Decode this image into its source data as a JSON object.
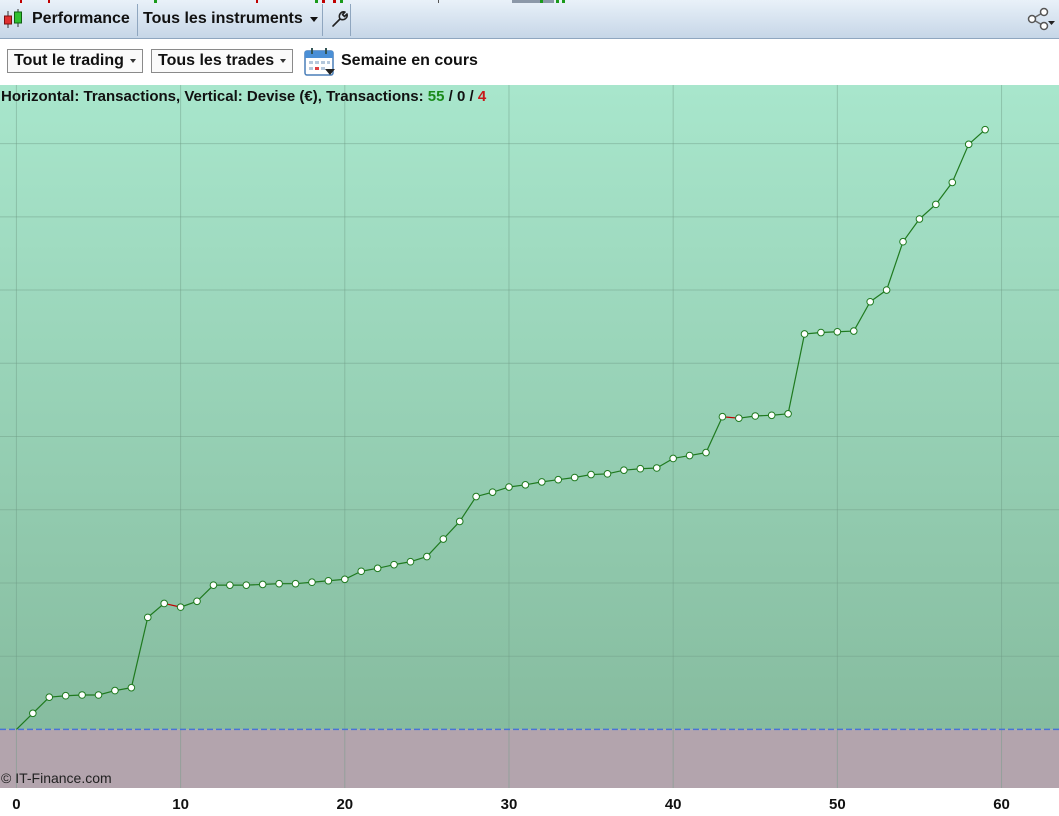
{
  "toolbar": {
    "tab_label": "Performance",
    "instruments_dropdown": "Tous les instruments",
    "icons": [
      "candlestick-icon",
      "wrench-icon",
      "share-icon",
      "calendar-icon"
    ]
  },
  "filters": {
    "scope_dropdown": "Tout le trading",
    "trades_dropdown": "Tous les trades",
    "period_label": "Semaine en cours"
  },
  "chart_header": {
    "prefix": "Horizontal: Transactions, Vertical: Devise (€), Transactions: ",
    "wins": "55",
    "sep1": " / ",
    "neutral": "0",
    "sep2": " / ",
    "losses": "4"
  },
  "colors": {
    "rise": "#1f7a1f",
    "fall": "#c00000",
    "plot_top": "#a8e6cc",
    "plot_bottom": "#86bc9f",
    "below_zero": "#b3a4ad",
    "baseline": "#4a72d6"
  },
  "copyright": "© IT-Finance.com",
  "chart_data": {
    "type": "line",
    "xlabel": "Transactions",
    "ylabel": "Devise (€)",
    "y_note": "no y values printed; values in gridline units relative to zero baseline",
    "x_ticks": [
      "0",
      "10",
      "20",
      "30",
      "40",
      "50",
      "60"
    ],
    "xlim": [
      -1,
      63.5
    ],
    "ylim": [
      -0.8,
      8.8
    ],
    "y_gridlines": [
      0,
      1,
      2,
      3,
      4,
      5,
      6,
      7,
      8
    ],
    "x": [
      0,
      1,
      2,
      3,
      4,
      5,
      6,
      7,
      8,
      9,
      10,
      11,
      12,
      13,
      14,
      15,
      16,
      17,
      18,
      19,
      20,
      21,
      22,
      23,
      24,
      25,
      26,
      27,
      28,
      29,
      30,
      31,
      32,
      33,
      34,
      35,
      36,
      37,
      38,
      39,
      40,
      41,
      42,
      43,
      44,
      45,
      46,
      47,
      48,
      49,
      50,
      51,
      52,
      53,
      54,
      55,
      56,
      57,
      58,
      59
    ],
    "values": [
      0.0,
      0.22,
      0.44,
      0.46,
      0.47,
      0.47,
      0.53,
      0.57,
      1.53,
      1.72,
      1.67,
      1.75,
      1.97,
      1.97,
      1.97,
      1.98,
      1.99,
      1.99,
      2.01,
      2.03,
      2.05,
      2.16,
      2.2,
      2.25,
      2.29,
      2.36,
      2.6,
      2.84,
      3.18,
      3.24,
      3.31,
      3.34,
      3.38,
      3.41,
      3.44,
      3.48,
      3.49,
      3.54,
      3.56,
      3.57,
      3.7,
      3.74,
      3.78,
      4.27,
      4.25,
      4.28,
      4.29,
      4.31,
      5.4,
      5.42,
      5.43,
      5.44,
      5.84,
      6.0,
      6.66,
      6.97,
      7.17,
      7.47,
      7.99,
      8.19
    ]
  }
}
